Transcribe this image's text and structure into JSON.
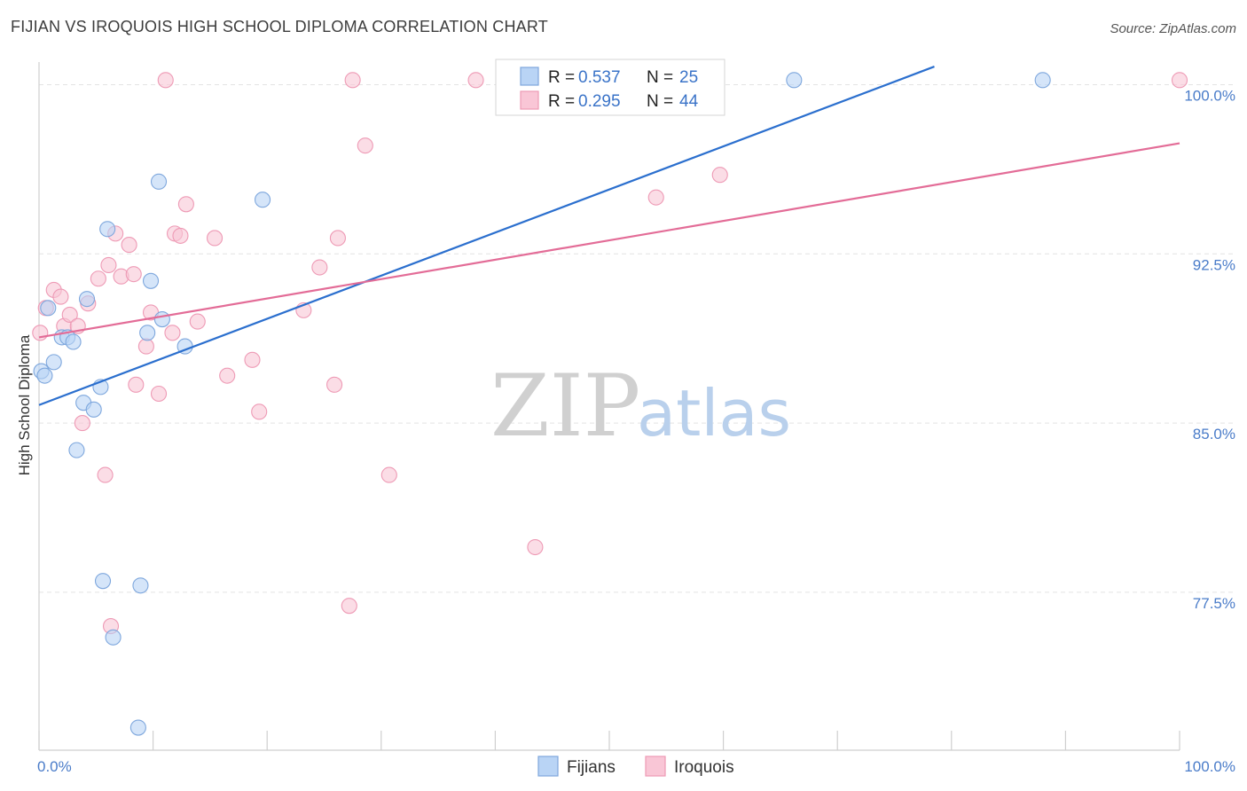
{
  "header": {
    "title": "FIJIAN VS IROQUOIS HIGH SCHOOL DIPLOMA CORRELATION CHART",
    "source": "Source: ZipAtlas.com"
  },
  "watermark": {
    "zip": "ZIP",
    "atlas": "atlas"
  },
  "colors": {
    "fijians_fill": "#b9d4f5",
    "fijians_stroke": "#7ea7dd",
    "fijians_line": "#2b6fce",
    "iroquois_fill": "#f9c6d6",
    "iroquois_stroke": "#ee9ab5",
    "iroquois_line": "#e36c97",
    "tick_label": "#4a7cc9",
    "grid": "#e3e3e3"
  },
  "legend": {
    "r_label": "R =",
    "n_label": "N =",
    "rows": [
      {
        "series": "Fijians",
        "r": "0.537",
        "n": "25"
      },
      {
        "series": "Iroquois",
        "r": "0.295",
        "n": "44"
      }
    ]
  },
  "bottom_legend": [
    "Fijians",
    "Iroquois"
  ],
  "chart_data": {
    "type": "scatter",
    "title": "FIJIAN VS IROQUOIS HIGH SCHOOL DIPLOMA CORRELATION CHART",
    "xlabel": "",
    "ylabel": "High School Diploma",
    "xlim": [
      0,
      100
    ],
    "ylim": [
      70.5,
      101.0
    ],
    "x_tick_labels": [
      {
        "value": 0,
        "label": "0.0%"
      },
      {
        "value": 100,
        "label": "100.0%"
      }
    ],
    "y_ticks": [
      {
        "value": 77.5,
        "label": "77.5%"
      },
      {
        "value": 85.0,
        "label": "85.0%"
      },
      {
        "value": 92.5,
        "label": "92.5%"
      },
      {
        "value": 100.0,
        "label": "100.0%"
      }
    ],
    "series": [
      {
        "name": "Fijians",
        "r": 0.537,
        "n": 25,
        "trendline": [
          [
            0,
            85.8
          ],
          [
            78.5,
            100.8
          ]
        ],
        "points": [
          [
            0.2,
            87.3
          ],
          [
            0.8,
            90.1
          ],
          [
            1.3,
            87.7
          ],
          [
            2.0,
            88.8
          ],
          [
            2.5,
            88.8
          ],
          [
            3.0,
            88.6
          ],
          [
            3.3,
            83.8
          ],
          [
            3.9,
            85.9
          ],
          [
            4.2,
            90.5
          ],
          [
            4.8,
            85.6
          ],
          [
            5.4,
            86.6
          ],
          [
            5.6,
            78.0
          ],
          [
            6.0,
            93.6
          ],
          [
            6.5,
            75.5
          ],
          [
            8.7,
            71.5
          ],
          [
            8.9,
            77.8
          ],
          [
            9.5,
            89.0
          ],
          [
            9.8,
            91.3
          ],
          [
            10.5,
            95.7
          ],
          [
            10.8,
            89.6
          ],
          [
            12.8,
            88.4
          ],
          [
            19.6,
            94.9
          ],
          [
            66.2,
            100.2
          ],
          [
            88.0,
            100.2
          ],
          [
            0.5,
            87.1
          ]
        ]
      },
      {
        "name": "Iroquois",
        "r": 0.295,
        "n": 44,
        "trendline": [
          [
            0,
            88.8
          ],
          [
            100,
            97.4
          ]
        ],
        "points": [
          [
            0.1,
            89.0
          ],
          [
            0.6,
            90.1
          ],
          [
            1.3,
            90.9
          ],
          [
            1.9,
            90.6
          ],
          [
            2.2,
            89.3
          ],
          [
            2.7,
            89.8
          ],
          [
            3.4,
            89.3
          ],
          [
            3.8,
            85.0
          ],
          [
            4.3,
            90.3
          ],
          [
            5.2,
            91.4
          ],
          [
            5.8,
            82.7
          ],
          [
            6.1,
            92.0
          ],
          [
            6.3,
            76.0
          ],
          [
            6.7,
            93.4
          ],
          [
            7.2,
            91.5
          ],
          [
            7.9,
            92.9
          ],
          [
            8.3,
            91.6
          ],
          [
            8.5,
            86.7
          ],
          [
            9.4,
            88.4
          ],
          [
            9.8,
            89.9
          ],
          [
            10.5,
            86.3
          ],
          [
            11.1,
            100.2
          ],
          [
            11.7,
            89.0
          ],
          [
            11.9,
            93.4
          ],
          [
            12.4,
            93.3
          ],
          [
            12.9,
            94.7
          ],
          [
            13.9,
            89.5
          ],
          [
            15.4,
            93.2
          ],
          [
            16.5,
            87.1
          ],
          [
            18.7,
            87.8
          ],
          [
            19.3,
            85.5
          ],
          [
            23.2,
            90.0
          ],
          [
            24.6,
            91.9
          ],
          [
            25.9,
            86.7
          ],
          [
            26.2,
            93.2
          ],
          [
            27.2,
            76.9
          ],
          [
            27.5,
            100.2
          ],
          [
            28.6,
            97.3
          ],
          [
            30.7,
            82.7
          ],
          [
            38.3,
            100.2
          ],
          [
            43.5,
            79.5
          ],
          [
            54.1,
            95.0
          ],
          [
            59.7,
            96.0
          ],
          [
            100.0,
            100.2
          ]
        ]
      }
    ]
  }
}
